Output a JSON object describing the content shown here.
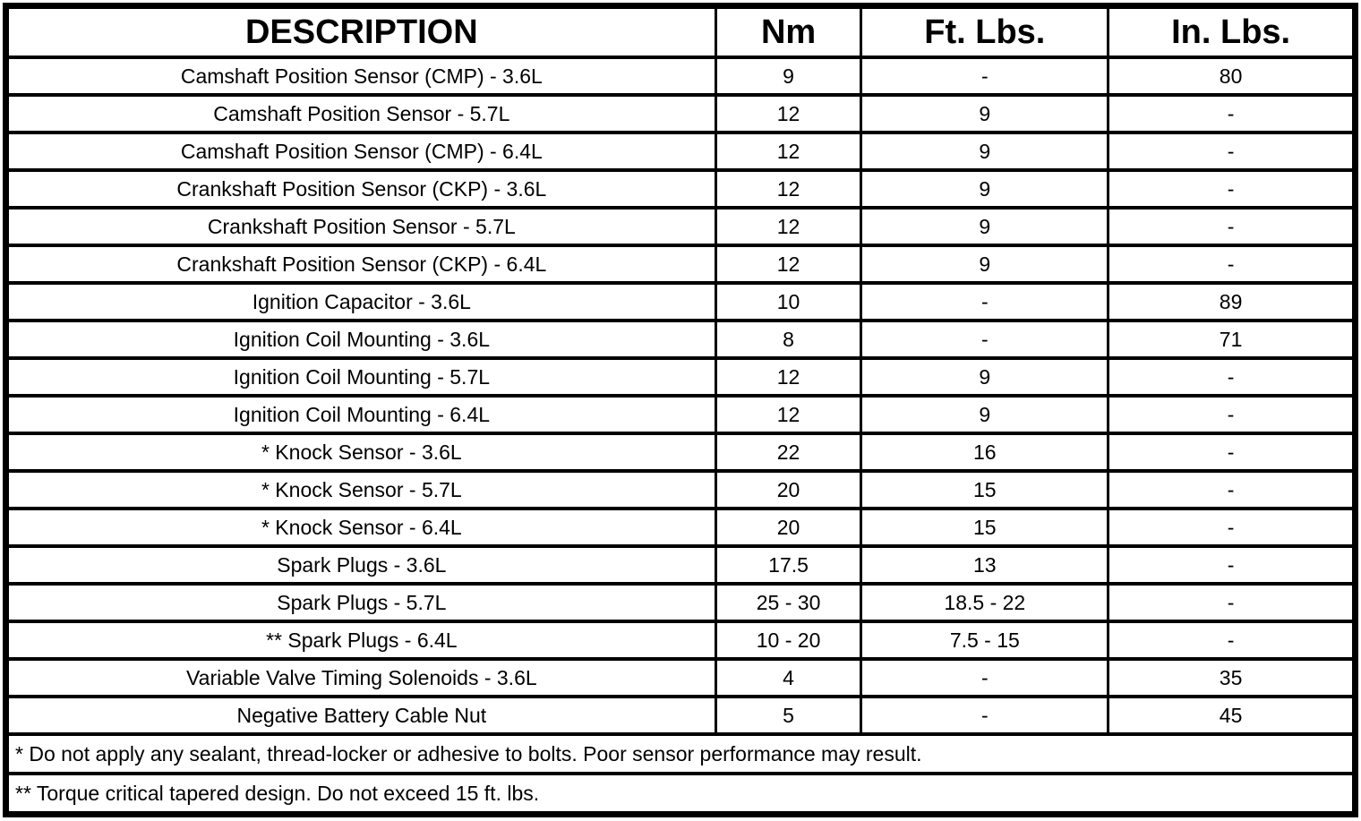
{
  "table": {
    "columns": {
      "description": "DESCRIPTION",
      "nm": "Nm",
      "ft_lbs": "Ft. Lbs.",
      "in_lbs": "In. Lbs."
    },
    "rows": [
      {
        "description": "Camshaft Position Sensor (CMP) - 3.6L",
        "nm": "9",
        "ft_lbs": "-",
        "in_lbs": "80"
      },
      {
        "description": "Camshaft Position Sensor - 5.7L",
        "nm": "12",
        "ft_lbs": "9",
        "in_lbs": "-"
      },
      {
        "description": "Camshaft Position Sensor (CMP) - 6.4L",
        "nm": "12",
        "ft_lbs": "9",
        "in_lbs": "-"
      },
      {
        "description": "Crankshaft Position Sensor (CKP) - 3.6L",
        "nm": "12",
        "ft_lbs": "9",
        "in_lbs": "-"
      },
      {
        "description": "Crankshaft Position Sensor - 5.7L",
        "nm": "12",
        "ft_lbs": "9",
        "in_lbs": "-"
      },
      {
        "description": "Crankshaft Position Sensor (CKP) - 6.4L",
        "nm": "12",
        "ft_lbs": "9",
        "in_lbs": "-"
      },
      {
        "description": "Ignition Capacitor - 3.6L",
        "nm": "10",
        "ft_lbs": "-",
        "in_lbs": "89"
      },
      {
        "description": "Ignition Coil Mounting - 3.6L",
        "nm": "8",
        "ft_lbs": "-",
        "in_lbs": "71"
      },
      {
        "description": "Ignition Coil Mounting - 5.7L",
        "nm": "12",
        "ft_lbs": "9",
        "in_lbs": "-"
      },
      {
        "description": "Ignition Coil Mounting - 6.4L",
        "nm": "12",
        "ft_lbs": "9",
        "in_lbs": "-"
      },
      {
        "description": "* Knock Sensor - 3.6L",
        "nm": "22",
        "ft_lbs": "16",
        "in_lbs": "-"
      },
      {
        "description": "* Knock Sensor - 5.7L",
        "nm": "20",
        "ft_lbs": "15",
        "in_lbs": "-"
      },
      {
        "description": "* Knock Sensor - 6.4L",
        "nm": "20",
        "ft_lbs": "15",
        "in_lbs": "-"
      },
      {
        "description": "Spark Plugs - 3.6L",
        "nm": "17.5",
        "ft_lbs": "13",
        "in_lbs": "-"
      },
      {
        "description": "Spark Plugs - 5.7L",
        "nm": "25 - 30",
        "ft_lbs": "18.5 - 22",
        "in_lbs": "-"
      },
      {
        "description": "** Spark Plugs - 6.4L",
        "nm": "10 - 20",
        "ft_lbs": "7.5 - 15",
        "in_lbs": "-"
      },
      {
        "description": "Variable Valve Timing Solenoids - 3.6L",
        "nm": "4",
        "ft_lbs": "-",
        "in_lbs": "35"
      },
      {
        "description": "Negative Battery Cable Nut",
        "nm": "5",
        "ft_lbs": "-",
        "in_lbs": "45"
      }
    ],
    "footnotes": [
      "* Do not apply any sealant, thread-locker or adhesive to bolts. Poor sensor performance may result.",
      "** Torque critical tapered design. Do not exceed 15 ft. lbs."
    ]
  },
  "colors": {
    "border": "#000000",
    "background": "#ffffff",
    "text": "#000000"
  }
}
